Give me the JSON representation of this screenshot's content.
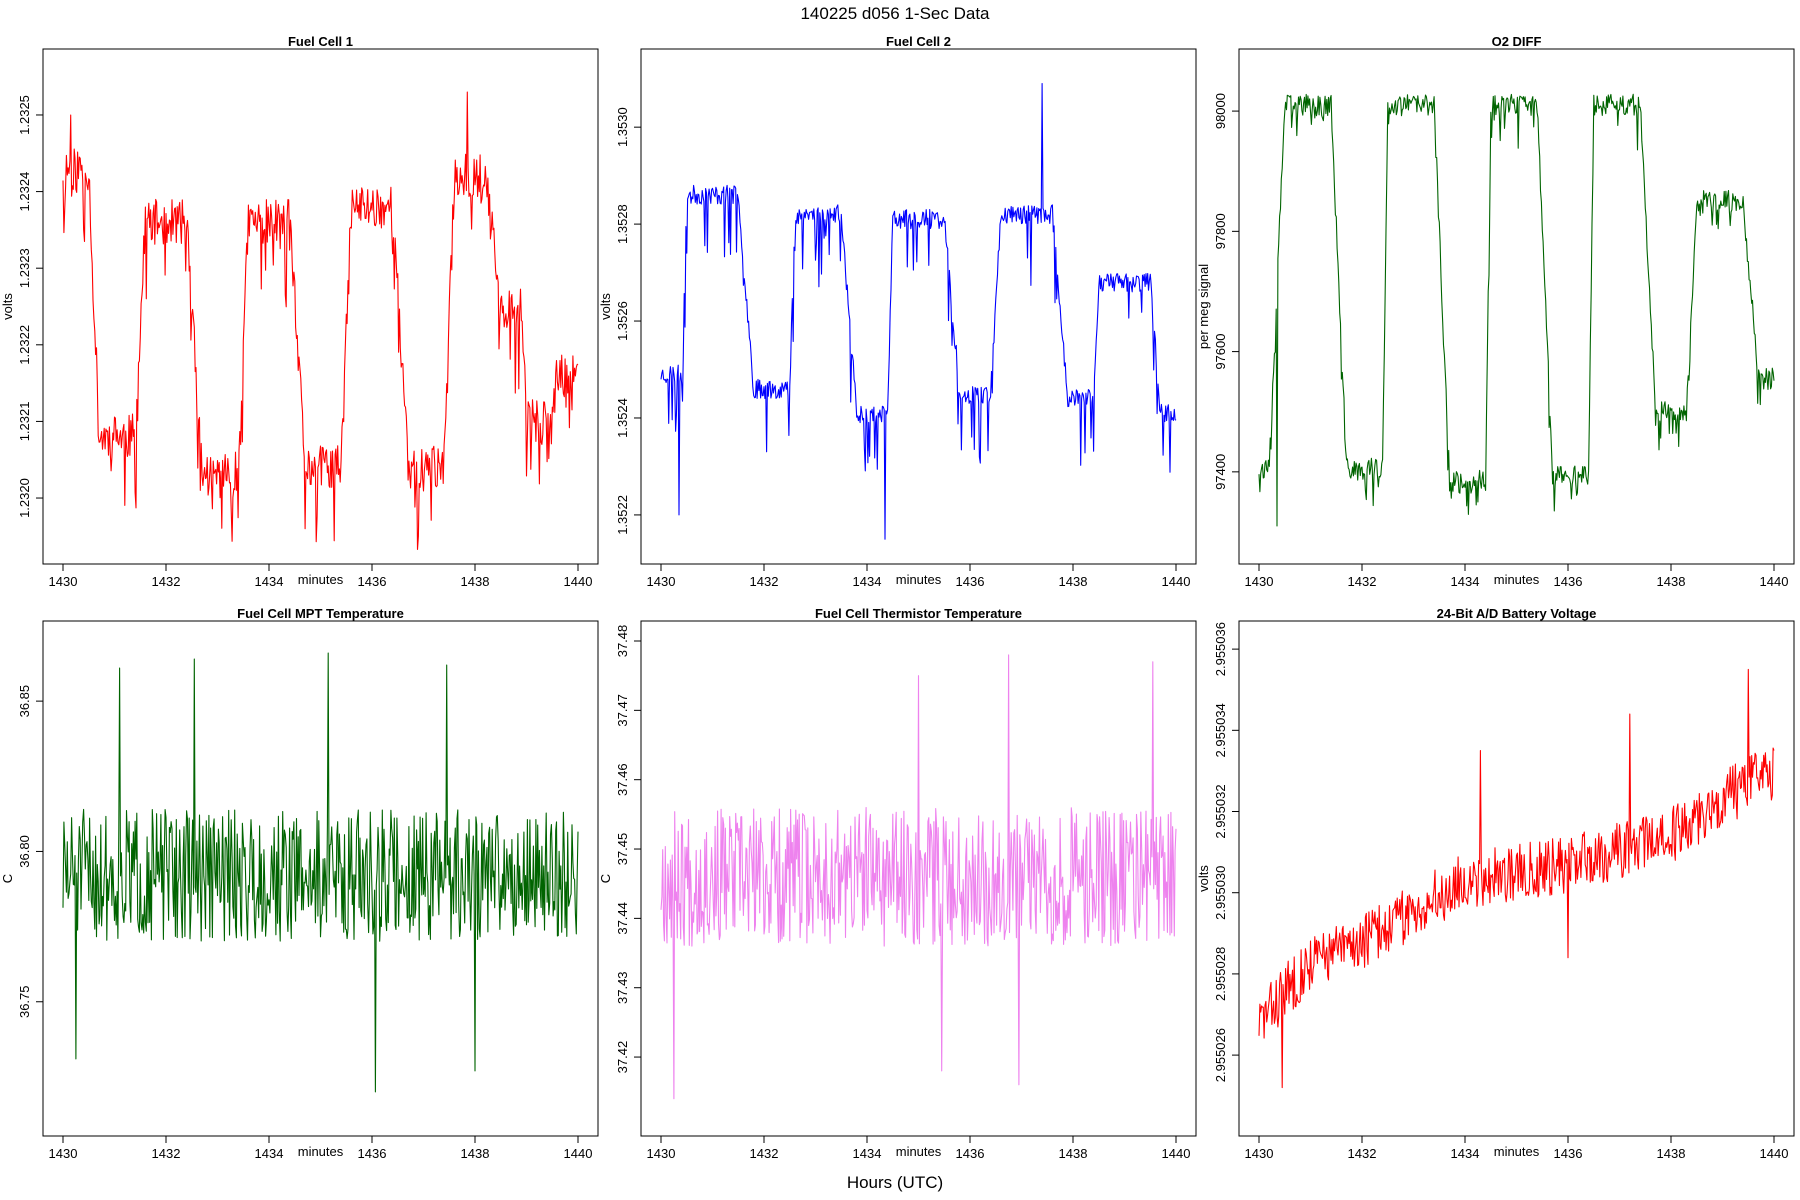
{
  "figure": {
    "title": "140225   d056   1-Sec Data",
    "footer": "Hours (UTC)"
  },
  "chart_data": [
    {
      "type": "line",
      "title": "Fuel Cell 1",
      "xlabel": "minutes",
      "ylabel": "volts",
      "color": "#ff0000",
      "xlim": [
        1430,
        1440
      ],
      "ylim": [
        1.23194,
        1.23256
      ],
      "xticks": [
        1430,
        1432,
        1434,
        1436,
        1438,
        1440
      ],
      "yticks": [
        1.232,
        1.2321,
        1.2322,
        1.2323,
        1.2324,
        1.2325
      ],
      "ytick_labels": [
        "1.2320",
        "1.2321",
        "1.2322",
        "1.2323",
        "1.2324",
        "1.2325"
      ],
      "series_shape": {
        "levels": [
          {
            "t0": 1430.0,
            "t1": 1430.5,
            "v": 1.23243
          },
          {
            "t0": 1430.7,
            "t1": 1431.4,
            "v": 1.23208
          },
          {
            "t0": 1431.6,
            "t1": 1432.4,
            "v": 1.23236
          },
          {
            "t0": 1432.7,
            "t1": 1433.4,
            "v": 1.23203
          },
          {
            "t0": 1433.6,
            "t1": 1434.4,
            "v": 1.23236
          },
          {
            "t0": 1434.7,
            "t1": 1435.4,
            "v": 1.23204
          },
          {
            "t0": 1435.6,
            "t1": 1436.4,
            "v": 1.23238
          },
          {
            "t0": 1436.7,
            "t1": 1437.4,
            "v": 1.23204
          },
          {
            "t0": 1437.6,
            "t1": 1438.2,
            "v": 1.23242
          },
          {
            "t0": 1438.5,
            "t1": 1438.9,
            "v": 1.23225
          },
          {
            "t0": 1439.0,
            "t1": 1439.5,
            "v": 1.2321
          },
          {
            "t0": 1439.6,
            "t1": 1440.0,
            "v": 1.23216
          }
        ],
        "noise": 3e-05,
        "spike_down": 9e-05,
        "spike_up": 0.0,
        "spikes": [
          [
            1437.85,
            1.23253
          ],
          [
            1430.15,
            1.2325
          ],
          [
            1434.7,
            1.23196
          ],
          [
            1436.9,
            1.23195
          ]
        ],
        "seed": 11
      }
    },
    {
      "type": "line",
      "title": "Fuel Cell 2",
      "xlabel": "minutes",
      "ylabel": "volts",
      "color": "#0000ff",
      "xlim": [
        1430,
        1440
      ],
      "ylim": [
        1.35214,
        1.35312
      ],
      "xticks": [
        1430,
        1432,
        1434,
        1436,
        1438,
        1440
      ],
      "yticks": [
        1.3522,
        1.3524,
        1.3526,
        1.3528,
        1.353
      ],
      "ytick_labels": [
        "1.3522",
        "1.3524",
        "1.3526",
        "1.3528",
        "1.3530"
      ],
      "series_shape": {
        "levels": [
          {
            "t0": 1430.0,
            "t1": 1430.4,
            "v": 1.35249
          },
          {
            "t0": 1430.5,
            "t1": 1431.5,
            "v": 1.35286
          },
          {
            "t0": 1431.8,
            "t1": 1432.5,
            "v": 1.35246
          },
          {
            "t0": 1432.6,
            "t1": 1433.5,
            "v": 1.35282
          },
          {
            "t0": 1433.8,
            "t1": 1434.4,
            "v": 1.35241
          },
          {
            "t0": 1434.5,
            "t1": 1435.5,
            "v": 1.35281
          },
          {
            "t0": 1435.8,
            "t1": 1436.4,
            "v": 1.35245
          },
          {
            "t0": 1436.6,
            "t1": 1437.6,
            "v": 1.35282
          },
          {
            "t0": 1437.9,
            "t1": 1438.4,
            "v": 1.35244
          },
          {
            "t0": 1438.5,
            "t1": 1439.5,
            "v": 1.35268
          },
          {
            "t0": 1439.7,
            "t1": 1440.0,
            "v": 1.35241
          }
        ],
        "noise": 2e-05,
        "spike_down": 0.00014,
        "spike_up": 0.0,
        "spikes": [
          [
            1437.4,
            1.35309
          ],
          [
            1434.35,
            1.35215
          ],
          [
            1430.35,
            1.3522
          ]
        ],
        "seed": 23
      }
    },
    {
      "type": "line",
      "title": "O2 DIFF",
      "xlabel": "minutes",
      "ylabel": "per meg signal",
      "color": "#006400",
      "xlim": [
        1430,
        1440
      ],
      "ylim": [
        97280,
        98070
      ],
      "xticks": [
        1430,
        1432,
        1434,
        1436,
        1438,
        1440
      ],
      "yticks": [
        97400,
        97600,
        97800,
        98000
      ],
      "ytick_labels": [
        "97400",
        "97600",
        "97800",
        "98000"
      ],
      "series_shape": {
        "levels": [
          {
            "t0": 1430.0,
            "t1": 1430.2,
            "v": 97405
          },
          {
            "t0": 1430.5,
            "t1": 1431.4,
            "v": 98010
          },
          {
            "t0": 1431.7,
            "t1": 1432.4,
            "v": 97405
          },
          {
            "t0": 1432.5,
            "t1": 1433.4,
            "v": 98010
          },
          {
            "t0": 1433.7,
            "t1": 1434.4,
            "v": 97385
          },
          {
            "t0": 1434.5,
            "t1": 1435.4,
            "v": 98010
          },
          {
            "t0": 1435.7,
            "t1": 1436.4,
            "v": 97395
          },
          {
            "t0": 1436.5,
            "t1": 1437.4,
            "v": 98010
          },
          {
            "t0": 1437.7,
            "t1": 1438.3,
            "v": 97500
          },
          {
            "t0": 1438.5,
            "t1": 1439.4,
            "v": 97850
          },
          {
            "t0": 1439.7,
            "t1": 1440.0,
            "v": 97555
          }
        ],
        "noise": 18,
        "spike_down": 60,
        "spike_up": 0,
        "spikes": [
          [
            1430.35,
            97310
          ]
        ],
        "seed": 37
      }
    },
    {
      "type": "line",
      "title": "Fuel Cell MPT Temperature",
      "xlabel": "minutes",
      "ylabel": "C",
      "color": "#006400",
      "xlim": [
        1430,
        1440
      ],
      "ylim": [
        36.712,
        36.87
      ],
      "xticks": [
        1430,
        1432,
        1434,
        1436,
        1438,
        1440
      ],
      "yticks": [
        36.75,
        36.8,
        36.85
      ],
      "ytick_labels": [
        "36.75",
        "36.80",
        "36.85"
      ],
      "series_shape": {
        "levels": [
          {
            "t0": 1430.0,
            "t1": 1440.0,
            "v": 36.792
          }
        ],
        "noise": 0.022,
        "spike_down": 0.0,
        "spike_up": 0.0,
        "spikes": [
          [
            1436.07,
            36.72
          ],
          [
            1438.0,
            36.727
          ],
          [
            1430.25,
            36.731
          ],
          [
            1435.15,
            36.866
          ],
          [
            1432.55,
            36.864
          ],
          [
            1431.1,
            36.861
          ],
          [
            1437.45,
            36.862
          ]
        ],
        "seed": 51
      }
    },
    {
      "type": "line",
      "title": "Fuel Cell Thermistor Temperature",
      "xlabel": "minutes",
      "ylabel": "C",
      "color": "#ee82ee",
      "xlim": [
        1430,
        1440
      ],
      "ylim": [
        37.4115,
        37.48
      ],
      "xticks": [
        1430,
        1432,
        1434,
        1436,
        1438,
        1440
      ],
      "yticks": [
        37.42,
        37.43,
        37.44,
        37.45,
        37.46,
        37.47,
        37.48
      ],
      "ytick_labels": [
        "37.42",
        "37.43",
        "37.44",
        "37.45",
        "37.46",
        "37.47",
        "37.48"
      ],
      "series_shape": {
        "levels": [
          {
            "t0": 1430.0,
            "t1": 1440.0,
            "v": 37.446
          }
        ],
        "noise": 0.01,
        "spike_down": 0.0,
        "spike_up": 0.0,
        "spikes": [
          [
            1430.25,
            37.414
          ],
          [
            1436.75,
            37.478
          ],
          [
            1439.55,
            37.477
          ],
          [
            1435.0,
            37.475
          ],
          [
            1436.95,
            37.416
          ],
          [
            1435.45,
            37.418
          ]
        ],
        "seed": 67
      }
    },
    {
      "type": "line",
      "title": "24-Bit A/D Battery Voltage",
      "xlabel": "minutes",
      "ylabel": "volts",
      "color": "#ff0000",
      "xlim": [
        1430,
        1440
      ],
      "ylim": [
        2.9550245,
        2.9550362
      ],
      "xticks": [
        1430,
        1432,
        1434,
        1436,
        1438,
        1440
      ],
      "yticks": [
        2.955026,
        2.955028,
        2.95503,
        2.955032,
        2.955034,
        2.955036
      ],
      "ytick_labels": [
        "2.955026",
        "2.955028",
        "2.955030",
        "2.955032",
        "2.955034",
        "2.955036"
      ],
      "series_shape": {
        "trend": [
          [
            1430.0,
            2.9550268
          ],
          [
            1431.0,
            2.9550283
          ],
          [
            1432.0,
            2.9550288
          ],
          [
            1434.0,
            2.9550303
          ],
          [
            1436.0,
            2.9550307
          ],
          [
            1438.0,
            2.9550314
          ],
          [
            1439.0,
            2.9550323
          ],
          [
            1440.0,
            2.955033
          ]
        ],
        "noise": 7e-07,
        "spike_down": 0.0,
        "spike_up": 0.0,
        "spikes": [
          [
            1439.5,
            2.9550355
          ],
          [
            1430.45,
            2.9550252
          ],
          [
            1434.3,
            2.9550335
          ],
          [
            1437.2,
            2.9550344
          ],
          [
            1436.0,
            2.9550284
          ]
        ],
        "seed": 83
      }
    }
  ]
}
